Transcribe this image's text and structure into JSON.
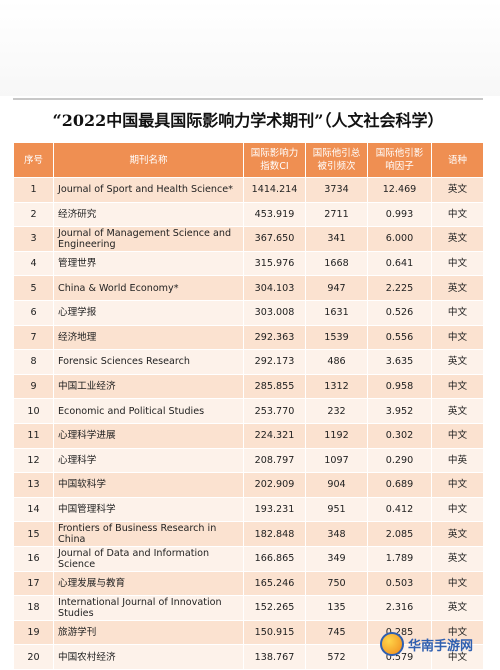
{
  "title": "“2022中国最具国际影响力学术期刊”（人文社会科学）",
  "headers": {
    "index": "序号",
    "name": "期刊名称",
    "ci_line1": "国际影响力",
    "ci_line2": "指数CI",
    "cites_line1": "国际他引总",
    "cites_line2": "被引频次",
    "if_line1": "国际他引影",
    "if_line2": "响因子",
    "lang": "语种"
  },
  "rows": [
    {
      "idx": "1",
      "name": "Journal of Sport and Health Science*",
      "ci": "1414.214",
      "cites": "3734",
      "if": "12.469",
      "lang": "英文"
    },
    {
      "idx": "2",
      "name": "经济研究",
      "ci": "453.919",
      "cites": "2711",
      "if": "0.993",
      "lang": "中文"
    },
    {
      "idx": "3",
      "name": "Journal of Management Science and Engineering",
      "ci": "367.650",
      "cites": "341",
      "if": "6.000",
      "lang": "英文"
    },
    {
      "idx": "4",
      "name": "管理世界",
      "ci": "315.976",
      "cites": "1668",
      "if": "0.641",
      "lang": "中文"
    },
    {
      "idx": "5",
      "name": "China & World Economy*",
      "ci": "304.103",
      "cites": "947",
      "if": "2.225",
      "lang": "英文"
    },
    {
      "idx": "6",
      "name": "心理学报",
      "ci": "303.008",
      "cites": "1631",
      "if": "0.526",
      "lang": "中文"
    },
    {
      "idx": "7",
      "name": "经济地理",
      "ci": "292.363",
      "cites": "1539",
      "if": "0.556",
      "lang": "中文"
    },
    {
      "idx": "8",
      "name": "Forensic Sciences Research",
      "ci": "292.173",
      "cites": "486",
      "if": "3.635",
      "lang": "英文"
    },
    {
      "idx": "9",
      "name": "中国工业经济",
      "ci": "285.855",
      "cites": "1312",
      "if": "0.958",
      "lang": "中文"
    },
    {
      "idx": "10",
      "name": "Economic and Political Studies",
      "ci": "253.770",
      "cites": "232",
      "if": "3.952",
      "lang": "英文"
    },
    {
      "idx": "11",
      "name": "心理科学进展",
      "ci": "224.321",
      "cites": "1192",
      "if": "0.302",
      "lang": "中文"
    },
    {
      "idx": "12",
      "name": "心理科学",
      "ci": "208.797",
      "cites": "1097",
      "if": "0.290",
      "lang": "中英"
    },
    {
      "idx": "13",
      "name": "中国软科学",
      "ci": "202.909",
      "cites": "904",
      "if": "0.689",
      "lang": "中文"
    },
    {
      "idx": "14",
      "name": "中国管理科学",
      "ci": "193.231",
      "cites": "951",
      "if": "0.412",
      "lang": "中文"
    },
    {
      "idx": "15",
      "name": "Frontiers of Business Research in China",
      "ci": "182.848",
      "cites": "348",
      "if": "2.085",
      "lang": "英文"
    },
    {
      "idx": "16",
      "name": "Journal of Data and Information Science",
      "ci": "166.865",
      "cites": "349",
      "if": "1.789",
      "lang": "英文"
    },
    {
      "idx": "17",
      "name": "心理发展与教育",
      "ci": "165.246",
      "cites": "750",
      "if": "0.503",
      "lang": "中文"
    },
    {
      "idx": "18",
      "name": "International Journal of Innovation Studies",
      "ci": "152.265",
      "cites": "135",
      "if": "2.316",
      "lang": "英文"
    },
    {
      "idx": "19",
      "name": "旅游学刊",
      "ci": "150.915",
      "cites": "745",
      "if": "0.285",
      "lang": "中文"
    },
    {
      "idx": "20",
      "name": "中国农村经济",
      "ci": "138.767",
      "cites": "572",
      "if": "0.579",
      "lang": "中文"
    }
  ],
  "watermark": "华南手游网"
}
